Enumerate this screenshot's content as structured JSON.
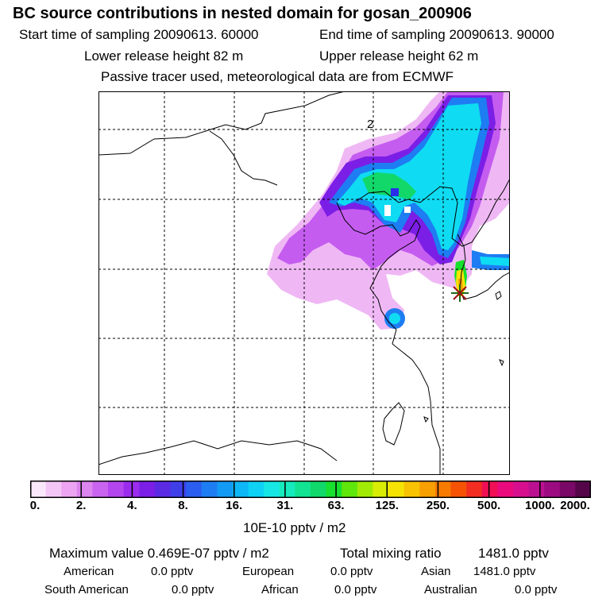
{
  "title": "BC  source contributions in nested domain for gosan_200906",
  "header": {
    "start_label": "Start time of sampling 20090613. 60000",
    "end_label": "End time of sampling 20090613. 90000",
    "lower_label": "Lower release height   82 m",
    "upper_label": "Upper release height   62 m",
    "tracer_label": "Passive tracer used, meteorological data are from ECMWF"
  },
  "map": {
    "annotation": "2",
    "receptor_icon": "asterisk-star-icon",
    "palette": [
      "#fbe7fc",
      "#f4c6f7",
      "#eda4f2",
      "#dc85ef",
      "#c964ef",
      "#b346ef",
      "#9a2cee",
      "#7b1ee6",
      "#5b2be4",
      "#3f3fea",
      "#2b5ef0",
      "#1e7df2",
      "#129af4",
      "#0db7f6",
      "#0ed1f4",
      "#17e7e4",
      "#15ebbc",
      "#12e392",
      "#10d86a",
      "#17e02e",
      "#5fe60b",
      "#a1ea06",
      "#d9ed04",
      "#f6e304",
      "#f8c303",
      "#f8a002",
      "#f77a02",
      "#f55303",
      "#f22e22",
      "#f00f54",
      "#ea0a7e",
      "#d70f8f",
      "#bb1191",
      "#9c0c80",
      "#7a0866",
      "#55054a"
    ]
  },
  "colorbar": {
    "labels": [
      "0.",
      "2.",
      "4.",
      "8.",
      "16.",
      "31.",
      "63.",
      "125.",
      "250.",
      "500.",
      "1000.",
      "2000."
    ],
    "unit": "10E-10 pptv / m2"
  },
  "footer": {
    "max_label": "Maximum value  0.469E-07 pptv / m2",
    "total_label": "Total mixing ratio",
    "total_value": "1481.0 pptv",
    "regions": [
      {
        "name": "American",
        "value": "0.0 pptv"
      },
      {
        "name": "European",
        "value": "0.0 pptv"
      },
      {
        "name": "Asian",
        "value": "1481.0 pptv"
      },
      {
        "name": "South American",
        "value": "0.0 pptv"
      },
      {
        "name": "African",
        "value": "0.0 pptv"
      },
      {
        "name": "Australian",
        "value": "0.0 pptv"
      }
    ]
  }
}
